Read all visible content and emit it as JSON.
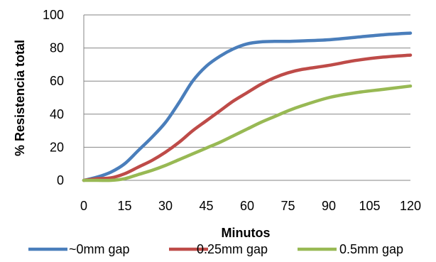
{
  "chart_data": {
    "type": "line",
    "title": "",
    "xlabel": "Minutos",
    "ylabel": "% Resistencia total",
    "xlim": [
      0,
      120
    ],
    "ylim": [
      0,
      100
    ],
    "xticks": [
      0,
      15,
      30,
      45,
      60,
      75,
      90,
      105,
      120
    ],
    "yticks": [
      0,
      20,
      40,
      60,
      80,
      100
    ],
    "grid": "horizontal",
    "legend": "bottom",
    "series": [
      {
        "name": "~0mm gap",
        "color": "#4a7ebb",
        "points": [
          [
            0,
            0
          ],
          [
            5,
            2
          ],
          [
            10,
            5
          ],
          [
            15,
            10
          ],
          [
            20,
            18
          ],
          [
            25,
            26
          ],
          [
            30,
            35
          ],
          [
            35,
            47
          ],
          [
            40,
            60
          ],
          [
            45,
            69
          ],
          [
            50,
            75
          ],
          [
            55,
            79.5
          ],
          [
            60,
            82.5
          ],
          [
            65,
            83.7
          ],
          [
            70,
            84
          ],
          [
            75,
            84
          ],
          [
            80,
            84.3
          ],
          [
            90,
            85
          ],
          [
            100,
            86.5
          ],
          [
            110,
            88
          ],
          [
            120,
            89
          ]
        ]
      },
      {
        "name": "0.25mm gap",
        "color": "#be4b48",
        "points": [
          [
            0,
            0
          ],
          [
            5,
            1
          ],
          [
            10,
            1.5
          ],
          [
            15,
            4
          ],
          [
            20,
            8
          ],
          [
            25,
            12
          ],
          [
            30,
            17
          ],
          [
            35,
            23
          ],
          [
            40,
            30
          ],
          [
            45,
            36
          ],
          [
            50,
            42
          ],
          [
            55,
            48
          ],
          [
            60,
            53
          ],
          [
            65,
            58
          ],
          [
            70,
            62
          ],
          [
            75,
            65
          ],
          [
            80,
            67
          ],
          [
            90,
            69.5
          ],
          [
            100,
            72.5
          ],
          [
            110,
            74.5
          ],
          [
            120,
            75.7
          ]
        ]
      },
      {
        "name": "0.5mm gap",
        "color": "#98b954",
        "points": [
          [
            0,
            0
          ],
          [
            5,
            0
          ],
          [
            10,
            0
          ],
          [
            15,
            1
          ],
          [
            20,
            3.5
          ],
          [
            25,
            6
          ],
          [
            30,
            9
          ],
          [
            35,
            12.5
          ],
          [
            40,
            16
          ],
          [
            45,
            19.5
          ],
          [
            50,
            23
          ],
          [
            55,
            27
          ],
          [
            60,
            31
          ],
          [
            65,
            35
          ],
          [
            70,
            38.5
          ],
          [
            75,
            42
          ],
          [
            80,
            45
          ],
          [
            90,
            50
          ],
          [
            100,
            53
          ],
          [
            110,
            55
          ],
          [
            120,
            57
          ]
        ]
      }
    ]
  }
}
